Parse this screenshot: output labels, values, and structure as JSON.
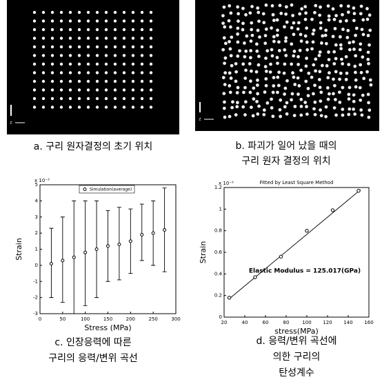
{
  "panels": [
    {
      "image_label": "z",
      "caption": [
        "a. 구리 원자결정의 초기 위치"
      ]
    },
    {
      "image_label": "z",
      "caption": [
        "b. 파괴가 일어 났을 때의",
        "구리 원자 결정의 위치"
      ]
    }
  ],
  "chart_captions": [
    [
      "c. 인장응력에 따른",
      "구리의 응력/변위 곡선"
    ],
    [
      "d. 응력/변위 곡선에",
      "의한 구리의",
      "탄성계수"
    ]
  ],
  "chart_data": [
    {
      "type": "errorbar",
      "y_exponent_label": "x 10⁻³",
      "legend_label": "Simulation(average)",
      "xlabel": "Stress (MPa)",
      "ylabel": "Strain",
      "x": [
        25,
        50,
        75,
        100,
        125,
        150,
        175,
        200,
        225,
        250,
        275
      ],
      "values": [
        0.1,
        0.3,
        0.5,
        0.8,
        1.0,
        1.2,
        1.3,
        1.5,
        1.9,
        2.0,
        2.2
      ],
      "upper": [
        2.3,
        3.0,
        4.0,
        4.0,
        4.0,
        3.4,
        3.6,
        3.5,
        3.8,
        4.0,
        4.8
      ],
      "lower": [
        -2.0,
        -2.3,
        -3.0,
        -2.5,
        -2.0,
        -1.0,
        -0.9,
        -0.5,
        0.3,
        0.0,
        -0.4
      ],
      "color": "#000000",
      "xlim": [
        0,
        300
      ],
      "xticks": [
        0,
        50,
        100,
        150,
        200,
        250,
        300
      ],
      "ylim": [
        -3,
        5
      ],
      "yticks": [
        -3,
        -2,
        -1,
        0,
        1,
        2,
        3,
        4,
        5
      ]
    },
    {
      "type": "scatter_fit",
      "title": "Fitted by Least Square Method",
      "y_exponent_label": "x 10⁻³",
      "annotation": "Elastic Modulus = 125.017(GPa)",
      "xlabel": "stress(MPa)",
      "ylabel": "Strain",
      "x": [
        25,
        50,
        75,
        100,
        125,
        150
      ],
      "values": [
        0.18,
        0.37,
        0.56,
        0.8,
        0.99,
        1.17
      ],
      "fit_x": [
        25,
        152
      ],
      "fit_values": [
        0.17,
        1.18
      ],
      "color": "#000000",
      "xlim": [
        20,
        160
      ],
      "xticks": [
        20,
        40,
        60,
        80,
        100,
        120,
        140,
        160
      ],
      "ylim": [
        0,
        1.2
      ],
      "yticks": [
        0,
        0.2,
        0.4,
        0.6,
        0.8,
        1,
        1.2
      ]
    }
  ]
}
